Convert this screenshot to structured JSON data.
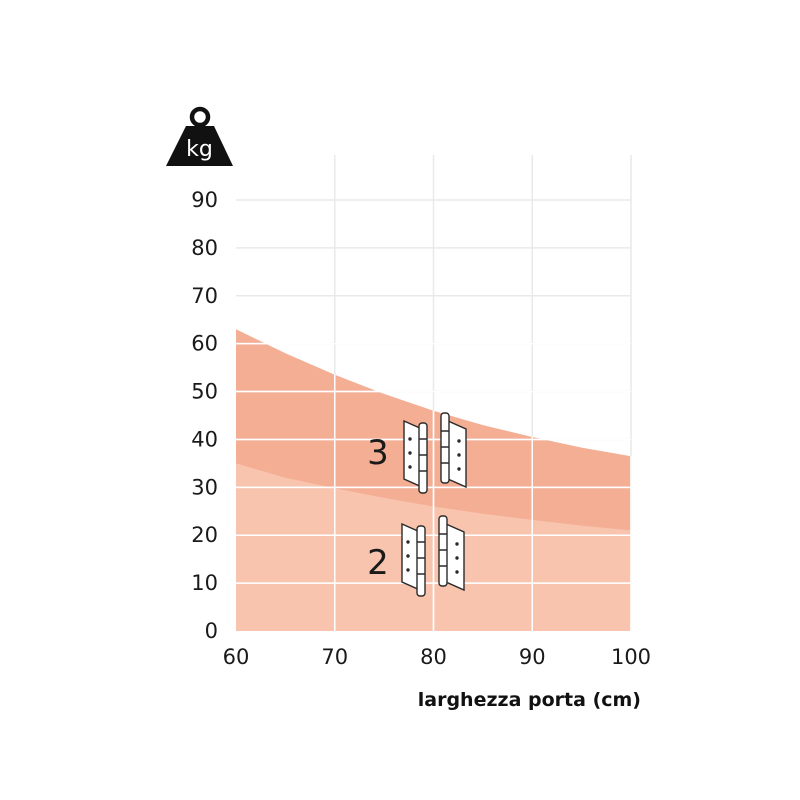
{
  "chart_data": {
    "type": "area",
    "xlabel": "larghezza porta (cm)",
    "ylabel": "kg",
    "xlim": [
      60,
      100
    ],
    "ylim": [
      0,
      90
    ],
    "x_ticks": [
      "60",
      "70",
      "80",
      "90",
      "100"
    ],
    "y_ticks": [
      "0",
      "10",
      "20",
      "30",
      "40",
      "50",
      "60",
      "70",
      "80",
      "90"
    ],
    "x_grid": [
      70,
      80,
      90,
      100
    ],
    "y_grid": [
      10,
      20,
      30,
      40,
      50,
      60,
      70,
      80,
      90
    ],
    "grid": true,
    "bands": [
      {
        "label": "2",
        "color": "#f8c4ae",
        "x": [
          60,
          65,
          70,
          75,
          80,
          85,
          90,
          95,
          100
        ],
        "upper": [
          35,
          32,
          29.8,
          27.8,
          26,
          24.5,
          23.2,
          22,
          21
        ]
      },
      {
        "label": "3",
        "color": "#f4ae94",
        "x": [
          60,
          65,
          70,
          75,
          80,
          85,
          90,
          95,
          100
        ],
        "upper": [
          63,
          58,
          53.5,
          49.5,
          46,
          43,
          40.5,
          38.3,
          36.5
        ]
      }
    ],
    "colors": {
      "grid": "#e9e9e9",
      "grid_on_band": "#ffffff",
      "text": "#1a1a1a",
      "icon": "#111111"
    },
    "icons": [
      "weight-icon",
      "hinge-icon"
    ]
  }
}
